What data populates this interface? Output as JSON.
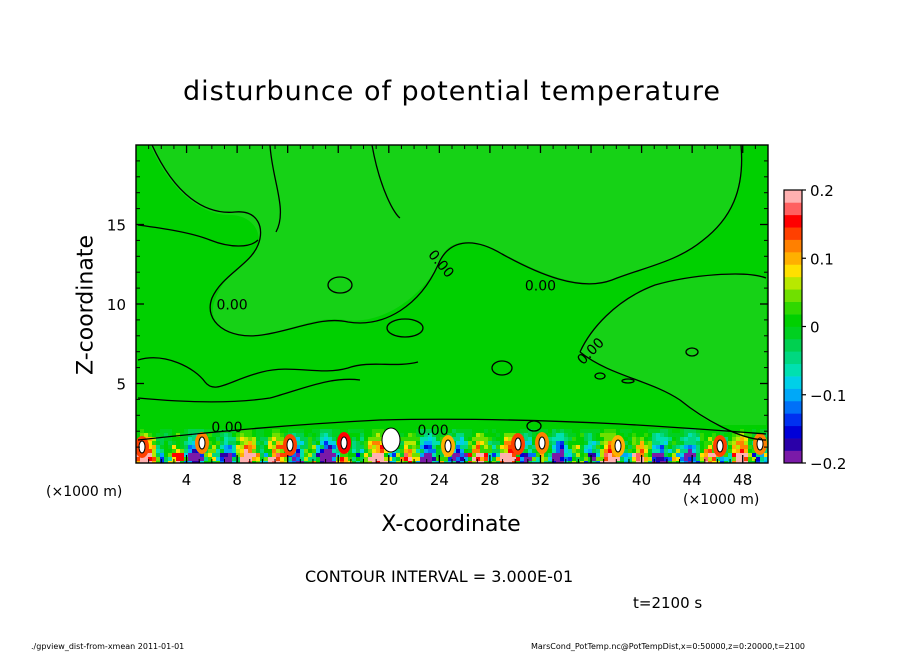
{
  "chart_data": {
    "type": "heatmap",
    "title": "disturbunce of potential temperature",
    "xlabel": "X-coordinate",
    "ylabel": "Z-coordinate",
    "x_unit_label": "(×1000 m)",
    "xlim": [
      0,
      50
    ],
    "ylim": [
      0,
      20
    ],
    "x_ticks": [
      4,
      8,
      12,
      16,
      20,
      24,
      28,
      32,
      36,
      40,
      44,
      48
    ],
    "y_ticks": [
      5,
      10,
      15
    ],
    "contour_labels": [
      {
        "text": "0.00",
        "x": 7.6,
        "z": 9.9,
        "angle": 0
      },
      {
        "text": "0.00",
        "x": 24.1,
        "z": 12.5,
        "angle": 50
      },
      {
        "text": "0.00",
        "x": 32.0,
        "z": 11.1,
        "angle": 0
      },
      {
        "text": "0.00",
        "x": 36.0,
        "z": 7.0,
        "angle": -45
      },
      {
        "text": "0.00",
        "x": 7.2,
        "z": 2.2,
        "angle": 0
      },
      {
        "text": "0.00",
        "x": 23.5,
        "z": 2.0,
        "angle": 0
      }
    ],
    "colorbar": {
      "range": [
        -0.2,
        0.2
      ],
      "tick_labels": [
        "0.2",
        "0.1",
        "0",
        "−0.1",
        "−0.2"
      ],
      "tick_values": [
        0.2,
        0.1,
        0,
        -0.1,
        -0.2
      ],
      "colors": [
        "#7a1aa8",
        "#2a00a8",
        "#0000d8",
        "#0030f0",
        "#0070f8",
        "#00a8f8",
        "#00d0e8",
        "#00e0b0",
        "#00d880",
        "#00d050",
        "#00d020",
        "#00d000",
        "#30d800",
        "#70e000",
        "#b8e800",
        "#ffe000",
        "#ffb000",
        "#ff8000",
        "#ff4000",
        "#ff0000",
        "#ff6060",
        "#ffb0b0"
      ]
    },
    "field": {
      "background_value": 0.0,
      "near_surface_range": [
        -0.2,
        0.2
      ]
    },
    "contour_interval_text": "CONTOUR INTERVAL = 3.000E-01",
    "time_text": "t=2100 s"
  },
  "footer": {
    "left": "./gpview_dist-from-xmean   2011-01-01",
    "right": "MarsCond_PotTemp.nc@PotTempDist,x=0:50000,z=0:20000,t=2100"
  }
}
